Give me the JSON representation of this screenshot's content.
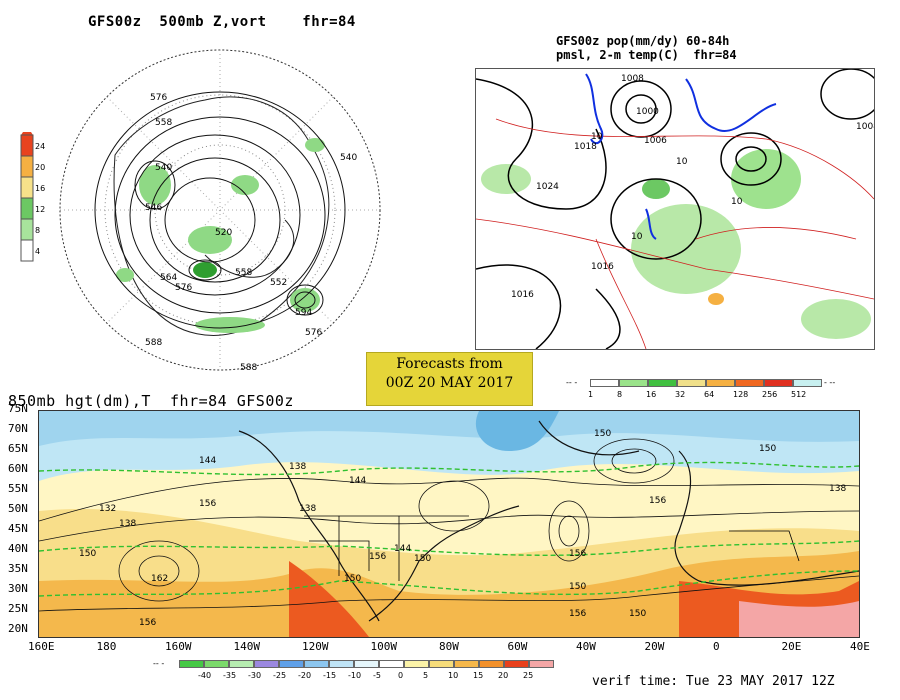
{
  "panel_tl": {
    "title": "GFS00z  500mb Z,vort    fhr=84",
    "scale_labels": [
      "4",
      "8",
      "12",
      "16",
      "20",
      "24"
    ],
    "scale_colors": [
      "#ffffff",
      "#a8e39c",
      "#6cc863",
      "#f7e28a",
      "#f5b042",
      "#e8431f"
    ],
    "contour_labels": [
      "576",
      "558",
      "540",
      "546",
      "520",
      "564",
      "576",
      "558",
      "552",
      "594",
      "576",
      "588",
      "588",
      "540"
    ]
  },
  "panel_tr": {
    "title_line1": "GFS00z pop(mm/dy) 60-84h",
    "title_line2": "pmsl, 2-m temp(C)  fhr=84",
    "contour_labels": [
      "1008",
      "1000",
      "1018",
      "1006",
      "1024",
      "1016",
      "1016",
      "1008",
      "10",
      "10",
      "10",
      "10"
    ],
    "scale_labels": [
      "1",
      "8",
      "16",
      "32",
      "64",
      "128",
      "256",
      "512"
    ],
    "scale_colors": [
      "#ffffff",
      "#9ae38a",
      "#40c040",
      "#f0e08a",
      "#f5b042",
      "#f06820",
      "#e03020",
      "#c8f0f0"
    ]
  },
  "banner": {
    "line1": "Forecasts from",
    "line2": "00Z 20 MAY 2017"
  },
  "panel_bottom": {
    "title": "850mb hgt(dm),T  fhr=84 GFS00z",
    "lat_labels": [
      "75N",
      "70N",
      "65N",
      "60N",
      "55N",
      "50N",
      "45N",
      "40N",
      "35N",
      "30N",
      "25N",
      "20N"
    ],
    "lon_labels": [
      "160E",
      "180",
      "160W",
      "140W",
      "120W",
      "100W",
      "80W",
      "60W",
      "40W",
      "20W",
      "0",
      "20E",
      "40E"
    ],
    "contour_labels": [
      "144",
      "138",
      "144",
      "132",
      "138",
      "156",
      "150",
      "162",
      "150",
      "156",
      "156",
      "144",
      "150",
      "156",
      "150",
      "138",
      "150",
      "156",
      "150",
      "156",
      "150",
      "138"
    ],
    "temp_scale_labels": [
      "-40",
      "-35",
      "-30",
      "-25",
      "-20",
      "-15",
      "-10",
      "-5",
      "0",
      "5",
      "10",
      "15",
      "20",
      "25"
    ],
    "temp_scale_colors": [
      "#45c845",
      "#7bd96b",
      "#b6ecb0",
      "#9b88e0",
      "#5fa0e8",
      "#8cc6ef",
      "#bfe4f6",
      "#e5f6fb",
      "#ffffff",
      "#fbf3a8",
      "#f6dc7a",
      "#f5b74a",
      "#f2902a",
      "#e8401c",
      "#f4a6a6"
    ],
    "verif": "verif time: Tue 23 MAY 2017 12Z"
  }
}
